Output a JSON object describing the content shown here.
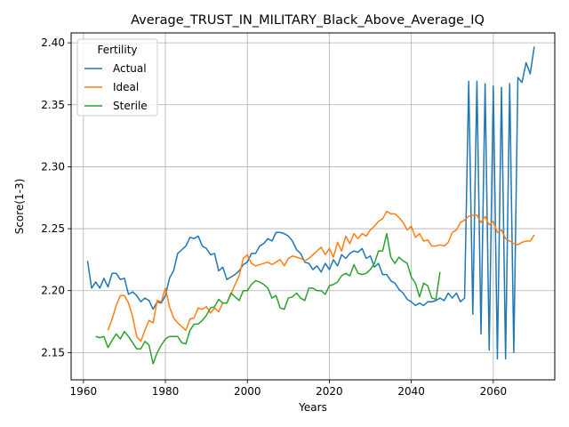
{
  "chart_data": {
    "type": "line",
    "title": "Average_TRUST_IN_MILITARY_Black_Above_Average_IQ",
    "xlabel": "Years",
    "ylabel": "Score(1-3)",
    "xlim": [
      1957,
      2075
    ],
    "ylim": [
      2.128,
      2.408
    ],
    "x_ticks": [
      1960,
      1980,
      2000,
      2020,
      2040,
      2060
    ],
    "y_ticks": [
      2.15,
      2.2,
      2.25,
      2.3,
      2.35,
      2.4
    ],
    "x_tick_labels": [
      "1960",
      "1980",
      "2000",
      "2020",
      "2040",
      "2060"
    ],
    "y_tick_labels": [
      "2.15",
      "2.20",
      "2.25",
      "2.30",
      "2.35",
      "2.40"
    ],
    "grid": true,
    "legend": {
      "title": "Fertility",
      "position": "top-left"
    },
    "series": [
      {
        "name": "Actual",
        "color": "#1f77b4",
        "x": [
          1961,
          1962,
          1963,
          1964,
          1965,
          1966,
          1967,
          1968,
          1969,
          1970,
          1971,
          1972,
          1973,
          1974,
          1975,
          1976,
          1977,
          1978,
          1979,
          1980,
          1981,
          1982,
          1983,
          1984,
          1985,
          1986,
          1987,
          1988,
          1989,
          1990,
          1991,
          1992,
          1993,
          1994,
          1995,
          1996,
          1997,
          1998,
          1999,
          2000,
          2001,
          2002,
          2003,
          2004,
          2005,
          2006,
          2007,
          2008,
          2009,
          2010,
          2011,
          2012,
          2013,
          2014,
          2015,
          2016,
          2017,
          2018,
          2019,
          2020,
          2021,
          2022,
          2023,
          2024,
          2025,
          2026,
          2027,
          2028,
          2029,
          2030,
          2031,
          2032,
          2033,
          2034,
          2035,
          2036,
          2037,
          2038,
          2039,
          2040,
          2041,
          2042,
          2043,
          2044,
          2045,
          2046,
          2047,
          2048,
          2049,
          2050,
          2051,
          2052,
          2053,
          2054,
          2055,
          2056,
          2057,
          2058,
          2059,
          2060,
          2061,
          2062,
          2063,
          2064,
          2065,
          2066,
          2067,
          2068,
          2069,
          2070
        ],
        "y": [
          2.224,
          2.202,
          2.207,
          2.202,
          2.21,
          2.203,
          2.214,
          2.214,
          2.209,
          2.21,
          2.197,
          2.199,
          2.196,
          2.191,
          2.194,
          2.192,
          2.185,
          2.191,
          2.19,
          2.196,
          2.21,
          2.216,
          2.23,
          2.233,
          2.236,
          2.243,
          2.242,
          2.244,
          2.236,
          2.234,
          2.229,
          2.23,
          2.216,
          2.219,
          2.209,
          2.211,
          2.213,
          2.216,
          2.221,
          2.223,
          2.23,
          2.23,
          2.236,
          2.238,
          2.242,
          2.24,
          2.247,
          2.247,
          2.246,
          2.244,
          2.24,
          2.233,
          2.23,
          2.223,
          2.222,
          2.217,
          2.22,
          2.215,
          2.222,
          2.217,
          2.225,
          2.22,
          2.229,
          2.226,
          2.23,
          2.232,
          2.231,
          2.234,
          2.226,
          2.228,
          2.219,
          2.222,
          2.213,
          2.213,
          2.208,
          2.206,
          2.201,
          2.198,
          2.193,
          2.191,
          2.188,
          2.19,
          2.188,
          2.191,
          2.191,
          2.192,
          2.194,
          2.192,
          2.198,
          2.194,
          2.198,
          2.191,
          2.194,
          2.369,
          2.181,
          2.369,
          2.165,
          2.367,
          2.152,
          2.365,
          2.145,
          2.364,
          2.145,
          2.367,
          2.15,
          2.372,
          2.368,
          2.384,
          2.375,
          2.397
        ]
      },
      {
        "name": "Ideal",
        "color": "#ff7f0e",
        "x": [
          1966,
          1967,
          1968,
          1969,
          1970,
          1971,
          1972,
          1973,
          1974,
          1975,
          1976,
          1977,
          1978,
          1979,
          1980,
          1981,
          1982,
          1983,
          1984,
          1985,
          1986,
          1987,
          1988,
          1989,
          1990,
          1991,
          1992,
          1993,
          1994,
          1995,
          1996,
          1997,
          1998,
          1999,
          2000,
          2001,
          2002,
          2003,
          2004,
          2005,
          2006,
          2007,
          2008,
          2009,
          2010,
          2011,
          2012,
          2013,
          2014,
          2015,
          2016,
          2017,
          2018,
          2019,
          2020,
          2021,
          2022,
          2023,
          2024,
          2025,
          2026,
          2027,
          2028,
          2029,
          2030,
          2031,
          2032,
          2033,
          2034,
          2035,
          2036,
          2037,
          2038,
          2039,
          2040,
          2041,
          2042,
          2043,
          2044,
          2045,
          2046,
          2047,
          2048,
          2049,
          2050,
          2051,
          2052,
          2053,
          2054,
          2055,
          2056,
          2057,
          2058,
          2059,
          2060,
          2061,
          2062,
          2063,
          2064,
          2065,
          2066,
          2067,
          2068,
          2069,
          2070
        ],
        "y": [
          2.168,
          2.177,
          2.188,
          2.196,
          2.196,
          2.19,
          2.179,
          2.163,
          2.159,
          2.168,
          2.176,
          2.174,
          2.192,
          2.191,
          2.202,
          2.187,
          2.178,
          2.174,
          2.171,
          2.168,
          2.177,
          2.178,
          2.186,
          2.185,
          2.187,
          2.182,
          2.186,
          2.183,
          2.19,
          2.19,
          2.197,
          2.205,
          2.212,
          2.226,
          2.229,
          2.222,
          2.22,
          2.221,
          2.222,
          2.223,
          2.221,
          2.223,
          2.225,
          2.22,
          2.226,
          2.228,
          2.227,
          2.226,
          2.224,
          2.226,
          2.229,
          2.232,
          2.235,
          2.229,
          2.234,
          2.227,
          2.239,
          2.232,
          2.244,
          2.238,
          2.246,
          2.242,
          2.246,
          2.244,
          2.249,
          2.252,
          2.256,
          2.258,
          2.264,
          2.262,
          2.262,
          2.259,
          2.255,
          2.249,
          2.252,
          2.243,
          2.246,
          2.24,
          2.241,
          2.236,
          2.236,
          2.237,
          2.236,
          2.239,
          2.247,
          2.249,
          2.255,
          2.257,
          2.26,
          2.261,
          2.261,
          2.255,
          2.26,
          2.253,
          2.256,
          2.247,
          2.249,
          2.242,
          2.24,
          2.238,
          2.237,
          2.239,
          2.24,
          2.24,
          2.245
        ]
      },
      {
        "name": "Sterile",
        "color": "#2ca02c",
        "x": [
          1963,
          1964,
          1965,
          1966,
          1967,
          1968,
          1969,
          1970,
          1971,
          1972,
          1973,
          1974,
          1975,
          1976,
          1977,
          1978,
          1979,
          1980,
          1981,
          1982,
          1983,
          1984,
          1985,
          1986,
          1987,
          1988,
          1989,
          1990,
          1991,
          1992,
          1993,
          1994,
          1995,
          1996,
          1997,
          1998,
          1999,
          2000,
          2001,
          2002,
          2003,
          2004,
          2005,
          2006,
          2007,
          2008,
          2009,
          2010,
          2011,
          2012,
          2013,
          2014,
          2015,
          2016,
          2017,
          2018,
          2019,
          2020,
          2021,
          2022,
          2023,
          2024,
          2025,
          2026,
          2027,
          2028,
          2029,
          2030,
          2031,
          2032,
          2033,
          2034,
          2035,
          2036,
          2037,
          2038,
          2039,
          2040,
          2041,
          2042,
          2043,
          2044,
          2045,
          2046,
          2047
        ],
        "y": [
          2.163,
          2.162,
          2.163,
          2.154,
          2.16,
          2.165,
          2.161,
          2.167,
          2.163,
          2.158,
          2.153,
          2.153,
          2.159,
          2.156,
          2.141,
          2.15,
          2.156,
          2.161,
          2.163,
          2.163,
          2.163,
          2.158,
          2.157,
          2.168,
          2.173,
          2.173,
          2.176,
          2.18,
          2.186,
          2.187,
          2.193,
          2.19,
          2.19,
          2.198,
          2.195,
          2.192,
          2.2,
          2.2,
          2.205,
          2.208,
          2.207,
          2.205,
          2.202,
          2.194,
          2.196,
          2.186,
          2.185,
          2.194,
          2.195,
          2.198,
          2.194,
          2.192,
          2.202,
          2.202,
          2.2,
          2.2,
          2.197,
          2.204,
          2.205,
          2.207,
          2.212,
          2.214,
          2.212,
          2.221,
          2.214,
          2.213,
          2.214,
          2.217,
          2.222,
          2.232,
          2.232,
          2.246,
          2.227,
          2.222,
          2.227,
          2.224,
          2.222,
          2.211,
          2.206,
          2.195,
          2.206,
          2.204,
          2.194,
          2.193,
          2.215
        ]
      }
    ]
  }
}
